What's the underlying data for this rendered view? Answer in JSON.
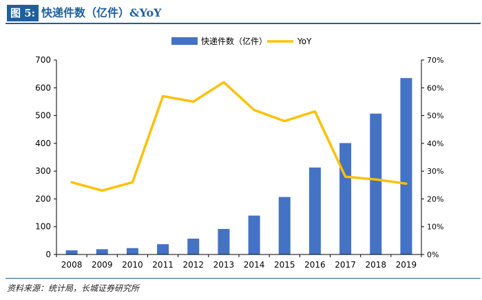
{
  "header": {
    "figure_label": "图 5:",
    "title": "快递件数（亿件）&YoY"
  },
  "source": "资料来源：统计局，长城证券研究所",
  "colors": {
    "bar": "#4472c4",
    "line": "#ffc000",
    "brand": "#1f5f9f",
    "axis": "#000000"
  },
  "chart_data": {
    "type": "bar+line",
    "categories": [
      "2008",
      "2009",
      "2010",
      "2011",
      "2012",
      "2013",
      "2014",
      "2015",
      "2016",
      "2017",
      "2018",
      "2019"
    ],
    "series": [
      {
        "name": "快递件数（亿件）",
        "type": "bar",
        "axis": "left",
        "values": [
          15,
          19,
          23,
          37,
          57,
          92,
          140,
          207,
          313,
          401,
          507,
          635
        ]
      },
      {
        "name": "YoY",
        "type": "line",
        "axis": "right",
        "values": [
          26,
          23,
          26,
          57,
          55,
          62,
          52,
          48,
          51.5,
          28,
          27,
          25.5
        ]
      }
    ],
    "y_left": {
      "min": 0,
      "max": 700,
      "ticks": [
        "0",
        "100",
        "200",
        "300",
        "400",
        "500",
        "600",
        "700"
      ]
    },
    "y_right": {
      "min": 0,
      "max": 70,
      "ticks": [
        "0%",
        "10%",
        "20%",
        "30%",
        "40%",
        "50%",
        "60%",
        "70%"
      ]
    },
    "legend": [
      "快递件数（亿件）",
      "YoY"
    ],
    "legend_position": "top-center",
    "grid": false
  }
}
